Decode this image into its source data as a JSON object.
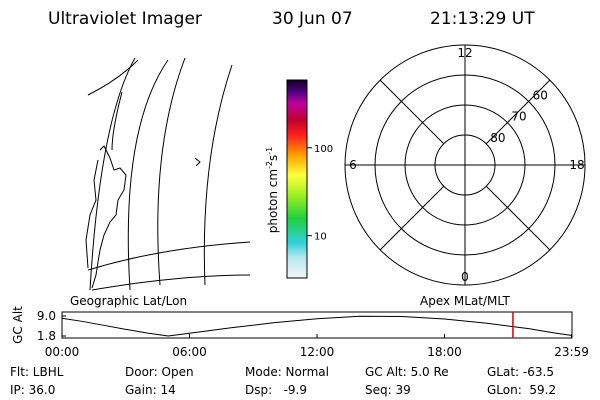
{
  "header": {
    "title": "Ultraviolet Imager",
    "date": "30 Jun 07",
    "time": "21:13:29 UT"
  },
  "colorbar": {
    "label": [
      "photon cm",
      "-2",
      "s",
      "-1"
    ],
    "log": true,
    "range": [
      3.3,
      590
    ],
    "ticks": [
      10,
      100
    ]
  },
  "polar": {
    "mlt_labels": [
      12,
      18,
      6,
      0
    ],
    "lat_labels": [
      80,
      70,
      60
    ]
  },
  "chart_data": {
    "type": "line",
    "ylabel": "GC Alt",
    "left_label": "Geographic Lat/Lon",
    "right_label": "Apex MLat/MLT",
    "x": [
      0,
      1,
      2,
      3,
      4,
      5,
      6,
      8,
      10,
      12,
      14,
      16,
      18,
      20,
      22,
      23,
      24
    ],
    "values": [
      8.2,
      7.0,
      5.6,
      4.2,
      2.9,
      1.8,
      2.8,
      4.8,
      6.6,
      8.0,
      8.9,
      8.8,
      7.9,
      6.4,
      4.4,
      3.1,
      2.0
    ],
    "color": "#000000",
    "marker_x": 21.22,
    "marker_color": "#e00000",
    "xlim": [
      0,
      24
    ],
    "ylim": [
      1.8,
      9.0
    ],
    "xticks": [
      {
        "value": 0,
        "label": "00:00"
      },
      {
        "value": 6,
        "label": "06:00"
      },
      {
        "value": 12,
        "label": "12:00"
      },
      {
        "value": 18,
        "label": "18:00"
      },
      {
        "value": 23.98,
        "label": "23:59"
      }
    ],
    "yticks": [
      {
        "value": 9.0,
        "label": "9.0"
      },
      {
        "value": 1.8,
        "label": "1.8"
      }
    ]
  },
  "footer": {
    "rows": [
      [
        "Flt: LBHL",
        "Door: Open",
        "Mode: Normal",
        "GC Alt: 5.0 Re",
        "GLat: -63.5"
      ],
      [
        "IP: 36.0",
        "Gain: 14",
        "Dsp:   -9.9",
        "Seq: 39",
        "GLon:  59.2"
      ]
    ]
  }
}
